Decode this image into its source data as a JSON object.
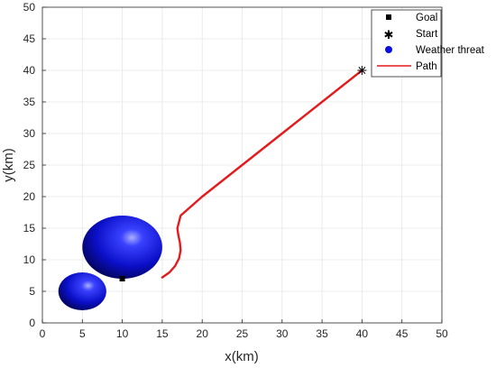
{
  "chart_data": {
    "type": "scatter",
    "title": "",
    "xlabel": "x(km)",
    "ylabel": "y(km)",
    "xlim": [
      0,
      50
    ],
    "ylim": [
      0,
      50
    ],
    "xticks": [
      0,
      5,
      10,
      15,
      20,
      25,
      30,
      35,
      40,
      45,
      50
    ],
    "yticks": [
      0,
      5,
      10,
      15,
      20,
      25,
      30,
      35,
      40,
      45,
      50
    ],
    "grid": true,
    "legend_position": "top-right",
    "legend": [
      {
        "label": "Goal",
        "marker": "square"
      },
      {
        "label": "Start",
        "marker": "asterisk"
      },
      {
        "label": "Weather threat",
        "marker": "circle"
      },
      {
        "label": "Path",
        "marker": "line"
      }
    ],
    "goal": {
      "x": 10,
      "y": 7
    },
    "start": {
      "x": 40,
      "y": 40
    },
    "weather_threats": [
      {
        "x": 10,
        "y": 12,
        "rx": 5,
        "ry": 5
      },
      {
        "x": 5,
        "y": 5,
        "rx": 3,
        "ry": 3
      }
    ],
    "path": {
      "x": [
        40,
        30,
        25,
        20,
        17.3,
        16.9,
        17.0,
        17.2,
        17.3,
        17.1,
        16.6,
        15.9,
        15.0
      ],
      "y": [
        40,
        30,
        25,
        20,
        17.0,
        15.0,
        14.0,
        12.8,
        11.5,
        10.2,
        9.0,
        8.0,
        7.2
      ]
    },
    "colors": {
      "path": "#e41a1c",
      "threat": "#1414c8",
      "markers": "#000000",
      "grid": "#e6e6e6"
    }
  }
}
